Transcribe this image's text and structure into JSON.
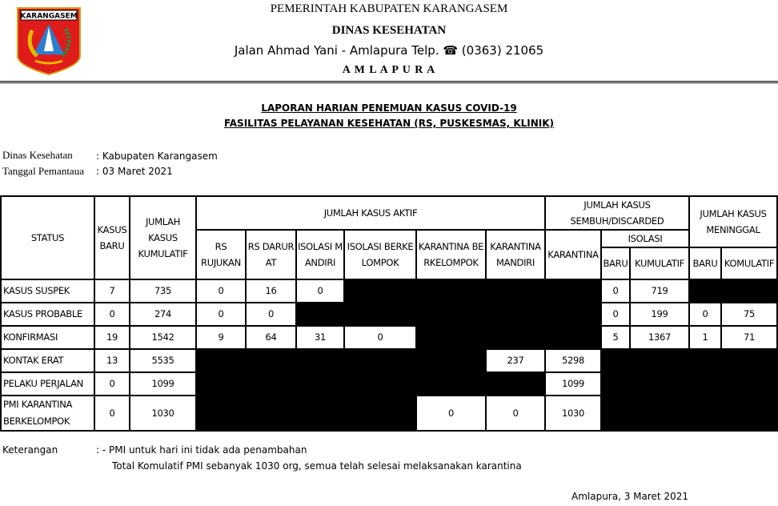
{
  "letterhead": {
    "logo_text": "KARANGASEM",
    "line1": "PEMERINTAH KABUPATEN KARANGASEM",
    "line2": "DINAS KESEHATAN",
    "line3_a": "Jalan Ahmad Yani  - Amlapura Telp.",
    "phone_icon": "phone-icon",
    "line3_b": "(0363) 21065",
    "line4": "A M L A P U R A"
  },
  "report": {
    "title1": "LAPORAN HARIAN PENEMUAN KASUS COVID-19",
    "title2": "FASILITAS PELAYANAN KESEHATAN (RS, PUSKESMAS, KLINIK)",
    "dinas_label": "Dinas Kesehatan",
    "dinas_value": ": Kabupaten Karangasem",
    "tanggal_label": "Tanggal Pemantaua",
    "tanggal_value": ": 03 Maret 2021"
  },
  "table": {
    "h_status": "STATUS",
    "h_kasus_baru": "KASUS BARU",
    "h_jumlah_kumulatif": "JUMLAH KASUS KUMULATIF",
    "h_aktif": "JUMLAH KASUS AKTIF",
    "h_sembuh": "JUMLAH KASUS SEMBUH/DISCARDED",
    "h_meninggal": "JUMLAH KASUS MENINGGAL",
    "h_rs_rujukan": "RS RUJUKAN",
    "h_rs_darurat": "RS DARURAT",
    "h_isolasi_mandiri": "ISOLASI MANDIRI",
    "h_isolasi_berkelompok": "ISOLASI BERKELOMPOK",
    "h_karantina_berkelompok": "KARANTINA BERKELOMPOK",
    "h_karantina_mandiri": "KARANTINA MANDIRI",
    "h_karantina": "KARANTINA",
    "h_isolasi": "ISOLASI",
    "h_baru": "BARU",
    "h_kumulatif": "KUMULATIF",
    "h_baru2": "BARU",
    "h_komulatif": "KOMULATIF",
    "rows": [
      {
        "status": "KASUS SUSPEK",
        "cells": [
          "7",
          "735",
          "0",
          "16",
          "0",
          null,
          null,
          null,
          null,
          "0",
          "719",
          null,
          null
        ]
      },
      {
        "status": "KASUS PROBABLE",
        "cells": [
          "0",
          "274",
          "0",
          "0",
          null,
          null,
          null,
          null,
          null,
          "0",
          "199",
          "0",
          "75"
        ]
      },
      {
        "status": "KONFIRMASI",
        "cells": [
          "19",
          "1542",
          "9",
          "64",
          "31",
          "0",
          null,
          null,
          null,
          "5",
          "1367",
          "1",
          "71"
        ]
      },
      {
        "status": "KONTAK ERAT",
        "cells": [
          "13",
          "5535",
          null,
          null,
          null,
          null,
          null,
          "237",
          "5298",
          null,
          null,
          null,
          null
        ]
      },
      {
        "status": "PELAKU PERJALAN",
        "cells": [
          "0",
          "1099",
          null,
          null,
          null,
          null,
          null,
          null,
          "1099",
          null,
          null,
          null,
          null
        ]
      },
      {
        "status": "PMI KARANTINA BERKELOMPOK",
        "cells": [
          "0",
          "1030",
          null,
          null,
          null,
          null,
          "0",
          "0",
          "1030",
          null,
          null,
          null,
          null
        ]
      }
    ]
  },
  "notes": {
    "label": "Keterangan",
    "line1": ": - PMI untuk hari ini tidak ada penambahan",
    "line2": "Total Komulatif PMI sebanyak 1030 org, semua telah selesai melaksanakan karantina"
  },
  "footer": {
    "place_date": "Amlapura, 3 Maret 2021"
  }
}
